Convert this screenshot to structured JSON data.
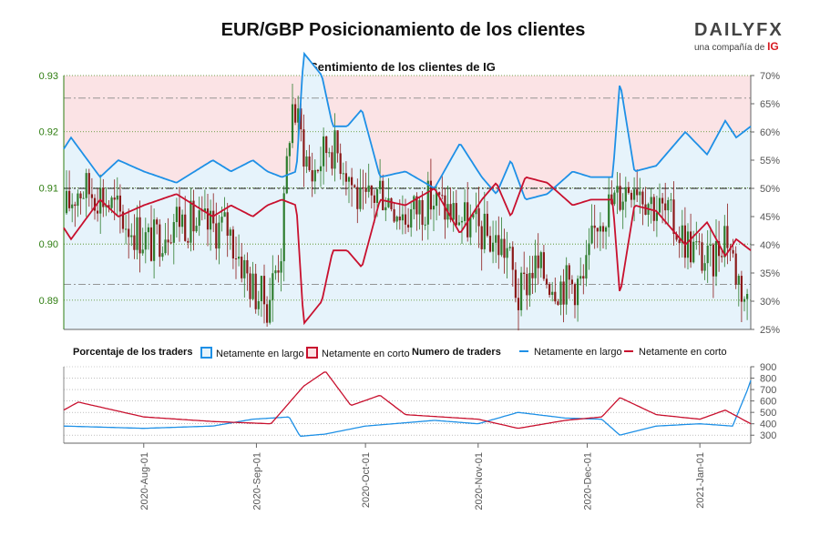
{
  "title": "EUR/GBP Posicionamiento de los clientes",
  "brand": {
    "name": "DAILYFX",
    "sub": "una compañía de",
    "ig": "IG"
  },
  "colors": {
    "long": "#1e90e6",
    "short": "#c8102e",
    "up": "#2e7d2e",
    "down": "#8b1a1a",
    "bg_short": "#fbe3e5",
    "bg_long": "#e6f3fb",
    "axis_green": "#2e7d10"
  },
  "legend": {
    "pct_title": "Porcentaje de los traders",
    "pct_long": "Netamente en largo",
    "pct_short": "Netamente en corto",
    "num_title": "Numero de traders",
    "num_long": "Netamente en largo",
    "num_short": "Netamente en corto"
  },
  "chart_data": [
    {
      "type": "candlestick",
      "title": "Sentimiento de los clientes de IG",
      "y_left_ticks": [
        "0.89",
        "0.90",
        "0.91",
        "0.92",
        "0.93"
      ],
      "y_right_ticks": [
        "25%",
        "30%",
        "35%",
        "40%",
        "45%",
        "50%",
        "55%",
        "60%",
        "65%",
        "70%"
      ],
      "ylim_left": [
        0.8848,
        0.93
      ],
      "ylim_right": [
        25,
        70
      ],
      "x_ticks": [
        "2020-Aug-01",
        "2020-Sep-01",
        "2020-Oct-01",
        "2020-Nov-01",
        "2020-Dec-01",
        "2021-Jan-01"
      ],
      "x_range": [
        "2020-Jul-10",
        "2021-Jan-15"
      ],
      "price_close": [
        {
          "date": "2020-Jul-10",
          "v": 0.9055
        },
        {
          "date": "2020-Jul-14",
          "v": 0.91
        },
        {
          "date": "2020-Jul-20",
          "v": 0.909
        },
        {
          "date": "2020-Jul-27",
          "v": 0.904
        },
        {
          "date": "2020-Aug-03",
          "v": 0.9
        },
        {
          "date": "2020-Aug-10",
          "v": 0.905
        },
        {
          "date": "2020-Aug-17",
          "v": 0.903
        },
        {
          "date": "2020-Aug-24",
          "v": 0.903
        },
        {
          "date": "2020-Aug-31",
          "v": 0.892
        },
        {
          "date": "2020-Sep-04",
          "v": 0.8895
        },
        {
          "date": "2020-Sep-08",
          "v": 0.9
        },
        {
          "date": "2020-Sep-10",
          "v": 0.92
        },
        {
          "date": "2020-Sep-11",
          "v": 0.925
        },
        {
          "date": "2020-Sep-16",
          "v": 0.912
        },
        {
          "date": "2020-Sep-21",
          "v": 0.918
        },
        {
          "date": "2020-Sep-25",
          "v": 0.915
        },
        {
          "date": "2020-Sep-30",
          "v": 0.906
        },
        {
          "date": "2020-Oct-05",
          "v": 0.91
        },
        {
          "date": "2020-Oct-12",
          "v": 0.905
        },
        {
          "date": "2020-Oct-19",
          "v": 0.908
        },
        {
          "date": "2020-Oct-26",
          "v": 0.905
        },
        {
          "date": "2020-Nov-02",
          "v": 0.902
        },
        {
          "date": "2020-Nov-09",
          "v": 0.899
        },
        {
          "date": "2020-Nov-12",
          "v": 0.89
        },
        {
          "date": "2020-Nov-16",
          "v": 0.896
        },
        {
          "date": "2020-Nov-23",
          "v": 0.893
        },
        {
          "date": "2020-Nov-30",
          "v": 0.893
        },
        {
          "date": "2020-Dec-04",
          "v": 0.905
        },
        {
          "date": "2020-Dec-09",
          "v": 0.908
        },
        {
          "date": "2020-Dec-14",
          "v": 0.912
        },
        {
          "date": "2020-Dec-18",
          "v": 0.908
        },
        {
          "date": "2020-Dec-23",
          "v": 0.905
        },
        {
          "date": "2020-Dec-29",
          "v": 0.9
        },
        {
          "date": "2021-Jan-04",
          "v": 0.896
        },
        {
          "date": "2021-Jan-08",
          "v": 0.903
        },
        {
          "date": "2021-Jan-11",
          "v": 0.895
        },
        {
          "date": "2021-Jan-15",
          "v": 0.888
        }
      ],
      "series": [
        {
          "name": "Netamente en largo",
          "unit": "%",
          "values": [
            {
              "date": "2020-Jul-10",
              "v": 57
            },
            {
              "date": "2020-Jul-12",
              "v": 59
            },
            {
              "date": "2020-Jul-20",
              "v": 52
            },
            {
              "date": "2020-Jul-25",
              "v": 55
            },
            {
              "date": "2020-Aug-01",
              "v": 53
            },
            {
              "date": "2020-Aug-10",
              "v": 51
            },
            {
              "date": "2020-Aug-20",
              "v": 55
            },
            {
              "date": "2020-Aug-25",
              "v": 53
            },
            {
              "date": "2020-Aug-28",
              "v": 54
            },
            {
              "date": "2020-Aug-31",
              "v": 55
            },
            {
              "date": "2020-Sep-04",
              "v": 53
            },
            {
              "date": "2020-Sep-08",
              "v": 52
            },
            {
              "date": "2020-Sep-12",
              "v": 53
            },
            {
              "date": "2020-Sep-14",
              "v": 74
            },
            {
              "date": "2020-Sep-19",
              "v": 70
            },
            {
              "date": "2020-Sep-22",
              "v": 61
            },
            {
              "date": "2020-Sep-26",
              "v": 61
            },
            {
              "date": "2020-Sep-30",
              "v": 64
            },
            {
              "date": "2020-Oct-05",
              "v": 52
            },
            {
              "date": "2020-Oct-12",
              "v": 53
            },
            {
              "date": "2020-Oct-20",
              "v": 50
            },
            {
              "date": "2020-Oct-27",
              "v": 58
            },
            {
              "date": "2020-Nov-02",
              "v": 52
            },
            {
              "date": "2020-Nov-06",
              "v": 49
            },
            {
              "date": "2020-Nov-10",
              "v": 55
            },
            {
              "date": "2020-Nov-14",
              "v": 48
            },
            {
              "date": "2020-Nov-20",
              "v": 49
            },
            {
              "date": "2020-Nov-27",
              "v": 53
            },
            {
              "date": "2020-Dec-02",
              "v": 52
            },
            {
              "date": "2020-Dec-08",
              "v": 52
            },
            {
              "date": "2020-Dec-10",
              "v": 69
            },
            {
              "date": "2020-Dec-14",
              "v": 53
            },
            {
              "date": "2020-Dec-20",
              "v": 54
            },
            {
              "date": "2020-Dec-28",
              "v": 60
            },
            {
              "date": "2021-Jan-03",
              "v": 56
            },
            {
              "date": "2021-Jan-08",
              "v": 62
            },
            {
              "date": "2021-Jan-11",
              "v": 59
            },
            {
              "date": "2021-Jan-15",
              "v": 61
            }
          ]
        },
        {
          "name": "Netamente en corto",
          "unit": "%",
          "values": [
            {
              "date": "2020-Jul-10",
              "v": 43
            },
            {
              "date": "2020-Jul-12",
              "v": 41
            },
            {
              "date": "2020-Jul-20",
              "v": 48
            },
            {
              "date": "2020-Jul-25",
              "v": 45
            },
            {
              "date": "2020-Aug-01",
              "v": 47
            },
            {
              "date": "2020-Aug-10",
              "v": 49
            },
            {
              "date": "2020-Aug-20",
              "v": 45
            },
            {
              "date": "2020-Aug-25",
              "v": 47
            },
            {
              "date": "2020-Aug-28",
              "v": 46
            },
            {
              "date": "2020-Aug-31",
              "v": 45
            },
            {
              "date": "2020-Sep-04",
              "v": 47
            },
            {
              "date": "2020-Sep-08",
              "v": 48
            },
            {
              "date": "2020-Sep-12",
              "v": 47
            },
            {
              "date": "2020-Sep-14",
              "v": 26
            },
            {
              "date": "2020-Sep-19",
              "v": 30
            },
            {
              "date": "2020-Sep-22",
              "v": 39
            },
            {
              "date": "2020-Sep-26",
              "v": 39
            },
            {
              "date": "2020-Sep-30",
              "v": 36
            },
            {
              "date": "2020-Oct-05",
              "v": 48
            },
            {
              "date": "2020-Oct-12",
              "v": 47
            },
            {
              "date": "2020-Oct-20",
              "v": 50
            },
            {
              "date": "2020-Oct-27",
              "v": 42
            },
            {
              "date": "2020-Nov-02",
              "v": 48
            },
            {
              "date": "2020-Nov-06",
              "v": 51
            },
            {
              "date": "2020-Nov-10",
              "v": 45
            },
            {
              "date": "2020-Nov-14",
              "v": 52
            },
            {
              "date": "2020-Nov-20",
              "v": 51
            },
            {
              "date": "2020-Nov-27",
              "v": 47
            },
            {
              "date": "2020-Dec-02",
              "v": 48
            },
            {
              "date": "2020-Dec-08",
              "v": 48
            },
            {
              "date": "2020-Dec-10",
              "v": 31
            },
            {
              "date": "2020-Dec-14",
              "v": 47
            },
            {
              "date": "2020-Dec-20",
              "v": 46
            },
            {
              "date": "2020-Dec-28",
              "v": 40
            },
            {
              "date": "2021-Jan-03",
              "v": 44
            },
            {
              "date": "2021-Jan-08",
              "v": 38
            },
            {
              "date": "2021-Jan-11",
              "v": 41
            },
            {
              "date": "2021-Jan-15",
              "v": 39
            }
          ]
        }
      ],
      "reference_lines": [
        50
      ]
    },
    {
      "type": "line",
      "y_ticks": [
        "300",
        "400",
        "500",
        "600",
        "700",
        "800",
        "900"
      ],
      "ylim": [
        230,
        900
      ],
      "series": [
        {
          "name": "Netamente en largo",
          "values": [
            {
              "date": "2020-Jul-10",
              "v": 380
            },
            {
              "date": "2020-Aug-01",
              "v": 360
            },
            {
              "date": "2020-Aug-20",
              "v": 380
            },
            {
              "date": "2020-Aug-31",
              "v": 440
            },
            {
              "date": "2020-Sep-10",
              "v": 460
            },
            {
              "date": "2020-Sep-13",
              "v": 290
            },
            {
              "date": "2020-Sep-20",
              "v": 310
            },
            {
              "date": "2020-Oct-01",
              "v": 380
            },
            {
              "date": "2020-Oct-20",
              "v": 430
            },
            {
              "date": "2020-Nov-01",
              "v": 400
            },
            {
              "date": "2020-Nov-12",
              "v": 500
            },
            {
              "date": "2020-Nov-25",
              "v": 450
            },
            {
              "date": "2020-Dec-05",
              "v": 440
            },
            {
              "date": "2020-Dec-10",
              "v": 300
            },
            {
              "date": "2020-Dec-20",
              "v": 380
            },
            {
              "date": "2021-Jan-01",
              "v": 400
            },
            {
              "date": "2021-Jan-10",
              "v": 380
            },
            {
              "date": "2021-Jan-14",
              "v": 690
            },
            {
              "date": "2021-Jan-15",
              "v": 780
            }
          ]
        },
        {
          "name": "Netamente en corto",
          "values": [
            {
              "date": "2020-Jul-10",
              "v": 520
            },
            {
              "date": "2020-Jul-14",
              "v": 590
            },
            {
              "date": "2020-Aug-01",
              "v": 460
            },
            {
              "date": "2020-Aug-20",
              "v": 420
            },
            {
              "date": "2020-Sep-05",
              "v": 400
            },
            {
              "date": "2020-Sep-14",
              "v": 730
            },
            {
              "date": "2020-Sep-20",
              "v": 860
            },
            {
              "date": "2020-Sep-27",
              "v": 560
            },
            {
              "date": "2020-Oct-05",
              "v": 650
            },
            {
              "date": "2020-Oct-12",
              "v": 480
            },
            {
              "date": "2020-Nov-01",
              "v": 440
            },
            {
              "date": "2020-Nov-12",
              "v": 360
            },
            {
              "date": "2020-Nov-25",
              "v": 430
            },
            {
              "date": "2020-Dec-05",
              "v": 460
            },
            {
              "date": "2020-Dec-10",
              "v": 630
            },
            {
              "date": "2020-Dec-20",
              "v": 480
            },
            {
              "date": "2021-Jan-01",
              "v": 440
            },
            {
              "date": "2021-Jan-08",
              "v": 520
            },
            {
              "date": "2021-Jan-15",
              "v": 400
            }
          ]
        }
      ]
    }
  ]
}
